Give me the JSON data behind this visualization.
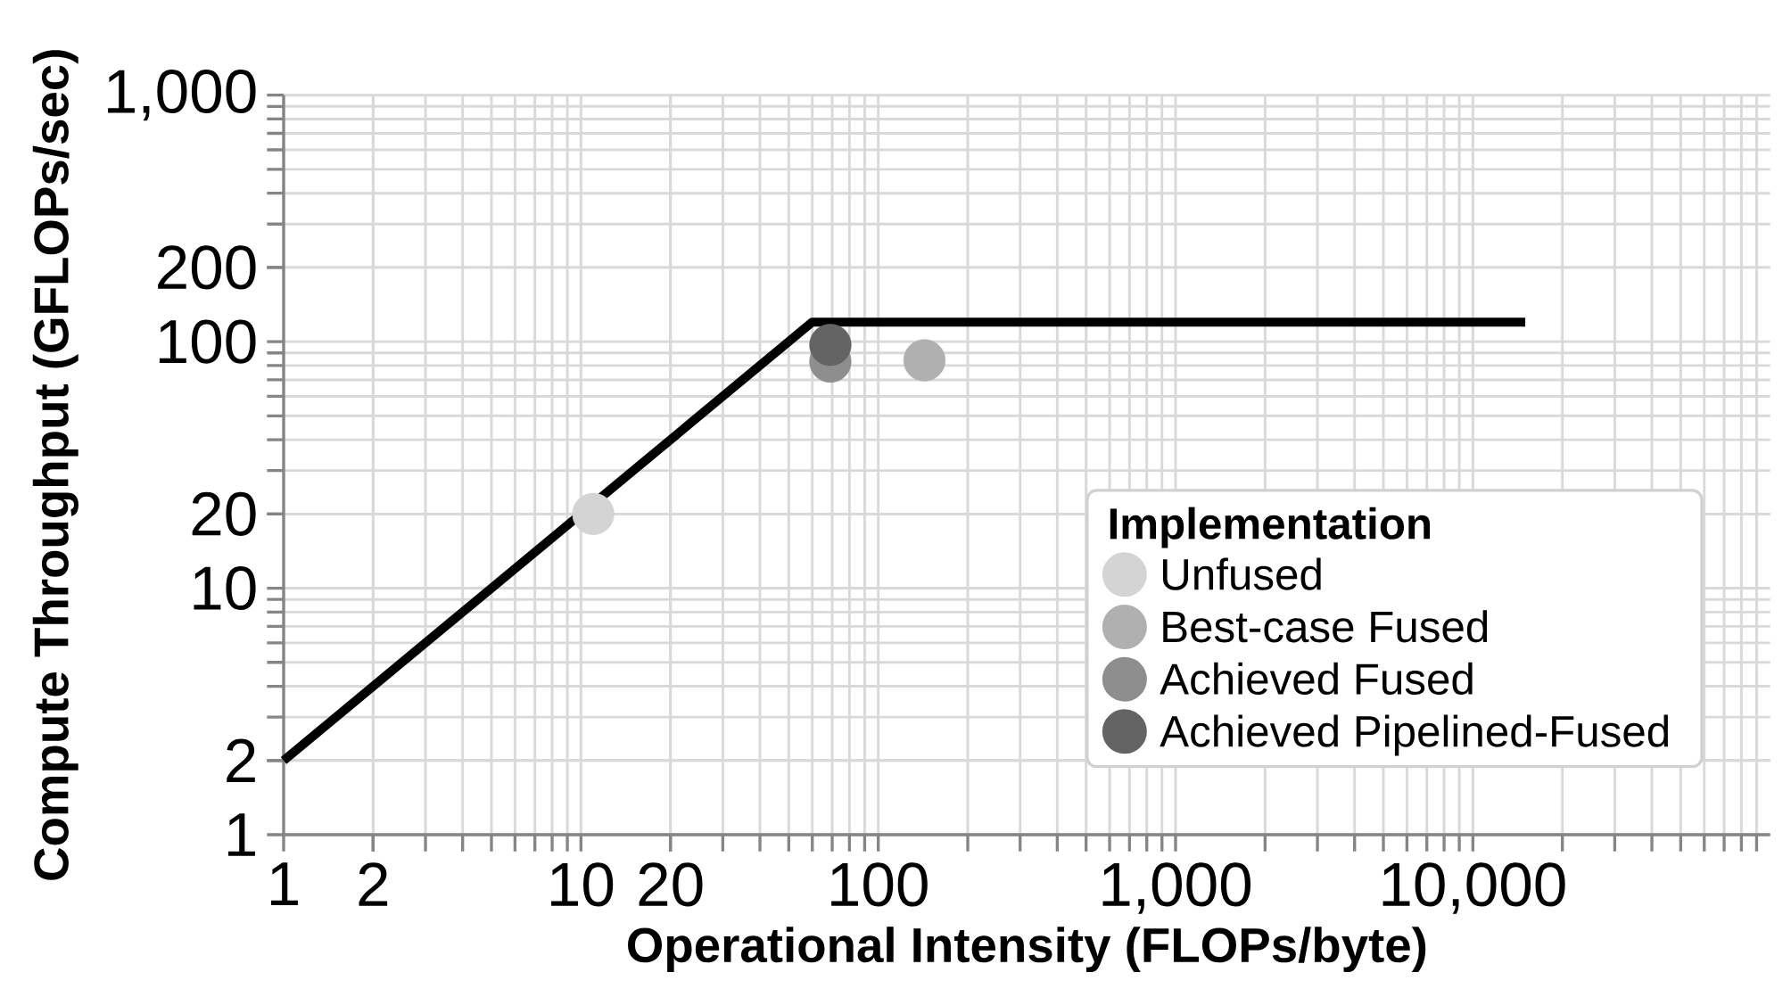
{
  "chart_data": {
    "type": "scatter",
    "xlabel": "Operational Intensity (FLOPs/byte)",
    "ylabel": "Compute Throughput (GFLOPs/sec)",
    "legend_title": "Implementation",
    "log": "xy",
    "grid": true,
    "legend": "bottom right",
    "xlim": [
      1,
      100000
    ],
    "ylim": [
      1,
      1000
    ],
    "xticks": [
      1,
      2,
      10,
      20,
      100,
      {
        "value": 1000,
        "label": "1,000"
      },
      {
        "value": 10000,
        "label": "10,000"
      }
    ],
    "yticks": [
      1,
      2,
      10,
      20,
      100,
      200,
      {
        "value": 1000,
        "label": "1,000"
      }
    ],
    "series": [
      {
        "name": "Unfused",
        "marker": "circle",
        "color": "#d4d4d4",
        "x": [
          11
        ],
        "values": [
          20
        ]
      },
      {
        "name": "Best-case Fused",
        "marker": "circle",
        "color": "#b0b0b0",
        "x": [
          143
        ],
        "values": [
          84
        ]
      },
      {
        "name": "Achieved Fused",
        "marker": "circle",
        "color": "#8e8e8e",
        "x": [
          69
        ],
        "values": [
          83
        ]
      },
      {
        "name": "Achieved Pipelined-Fused",
        "marker": "circle",
        "color": "#646464",
        "x": [
          69
        ],
        "values": [
          97
        ]
      },
      {
        "type": "line",
        "marker": "none",
        "color": "#000000",
        "x": [
          1,
          60,
          15000
        ],
        "values": [
          2,
          120,
          120
        ]
      }
    ]
  }
}
